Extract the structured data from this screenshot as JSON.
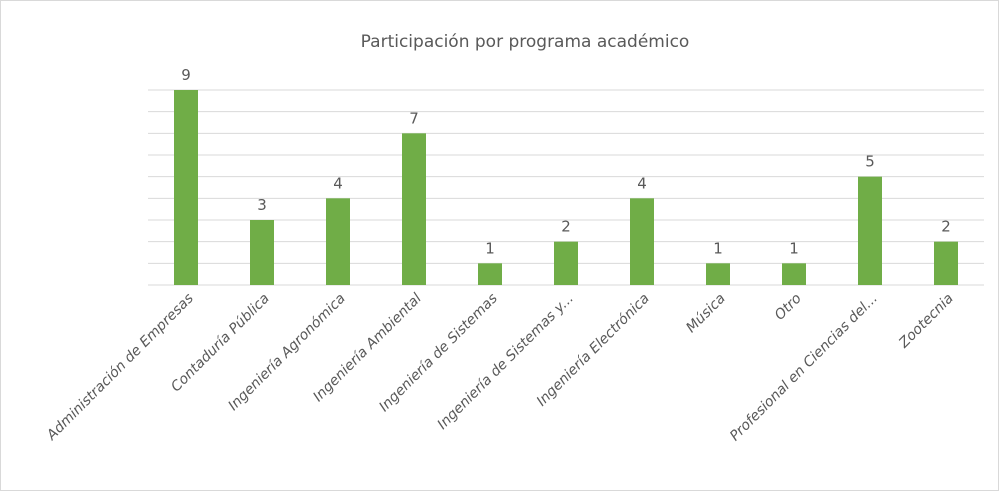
{
  "chart_data": {
    "type": "bar",
    "title": "Participación por programa académico",
    "categories": [
      "Administración de Empresas",
      "Contaduría Pública",
      "Ingeniería Agronómica",
      "Ingeniería Ambiental",
      "Ingeniería de Sistemas",
      "Ingeniería de Sistemas y...",
      "Ingeniería Electrónica",
      "Música",
      "Otro",
      "Profesional en Ciencias del...",
      "Zootecnia"
    ],
    "values": [
      9,
      3,
      4,
      7,
      1,
      2,
      4,
      1,
      1,
      5,
      2
    ],
    "color": "#70ad47",
    "ylim": [
      0,
      9
    ],
    "yticks": [
      0,
      1,
      2,
      3,
      4,
      5,
      6,
      7,
      8,
      9
    ],
    "ytick_labels_visible": false,
    "grid": true
  }
}
